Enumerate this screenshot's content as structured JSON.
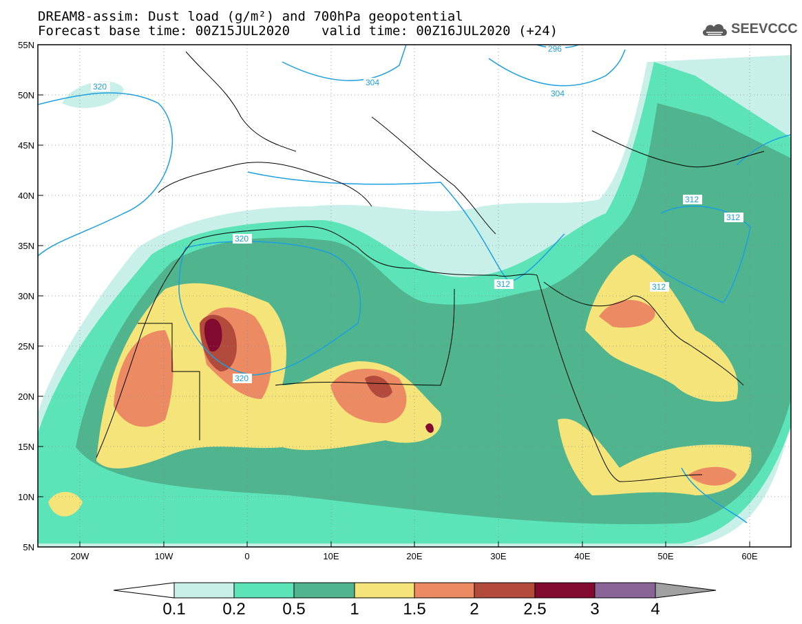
{
  "header": {
    "line1": "DREAM8-assim: Dust load (g/m²) and 700hPa geopotential",
    "base_time": "Forecast base time: 00Z15JUL2020",
    "valid_time": "valid time: 00Z16JUL2020 (+24)"
  },
  "logo": {
    "text": "SEEVCCC",
    "icon": "cloud-icon"
  },
  "axes": {
    "lat_labels": [
      "55N",
      "50N",
      "45N",
      "40N",
      "35N",
      "30N",
      "25N",
      "20N",
      "15N",
      "10N",
      "5N"
    ],
    "lon_labels": [
      "20W",
      "10W",
      "0",
      "10E",
      "20E",
      "30E",
      "40E",
      "50E",
      "60E"
    ]
  },
  "contour_labels": [
    "320",
    "304",
    "304",
    "296",
    "312",
    "312",
    "312",
    "320",
    "320",
    "312"
  ],
  "colorbar": {
    "labels": [
      "0.1",
      "0.2",
      "0.5",
      "1",
      "1.5",
      "2",
      "2.5",
      "3",
      "4"
    ],
    "colors": [
      "#c8f0e8",
      "#5ce3b8",
      "#50b58e",
      "#f5e47a",
      "#ec8a64",
      "#b24b3c",
      "#820a30",
      "#8a6496",
      "#a0a0a0"
    ]
  },
  "colors": {
    "contour": "#1a9fe0",
    "coast": "#000000",
    "background": "#ffffff"
  }
}
